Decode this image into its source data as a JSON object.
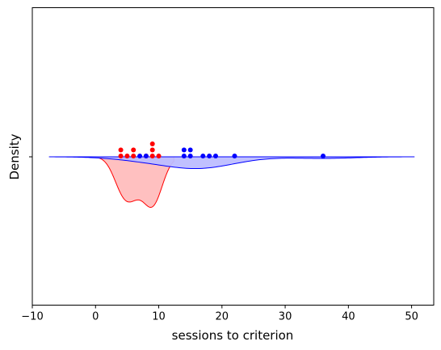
{
  "chart_data": {
    "type": "violin-strip",
    "title": "",
    "xlabel": "sessions to criterion",
    "ylabel": "Density",
    "xlim": [
      -10,
      53.5
    ],
    "xticks": [
      -10,
      0,
      10,
      20,
      30,
      40,
      50
    ],
    "xtick_labels": [
      "−10",
      "0",
      "10",
      "20",
      "30",
      "40",
      "50"
    ],
    "ytick_labels": [
      ""
    ],
    "grid": false,
    "series": [
      {
        "color": "#ff0000",
        "fill": "#ffbdbd",
        "points": [
          4,
          4,
          5,
          6,
          6,
          8,
          9,
          9,
          9,
          10
        ],
        "density_support": [
          -0.3,
          12.4
        ],
        "density_peaks": [
          5,
          9
        ]
      },
      {
        "color": "#0000ff",
        "fill": "#bdbdff",
        "points": [
          7,
          8,
          14,
          14,
          15,
          15,
          17,
          18,
          19,
          22,
          36
        ],
        "density_support": [
          -7.3,
          50.4
        ],
        "density_peaks": [
          16,
          35
        ]
      }
    ]
  }
}
